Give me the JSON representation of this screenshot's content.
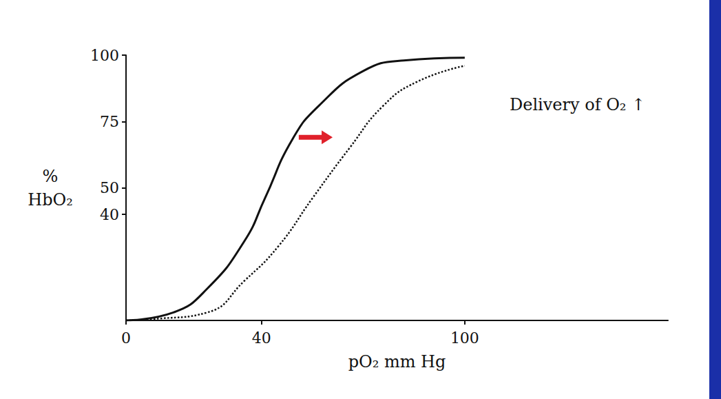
{
  "chart_data": {
    "type": "line",
    "x_label": "pO₂ mm Hg",
    "y_label": "% HbO₂",
    "xlim": [
      0,
      160
    ],
    "xticks": [
      0,
      40,
      100
    ],
    "ylim": [
      0,
      100
    ],
    "yticks": [
      40,
      50,
      75,
      100
    ],
    "grid": false,
    "series": [
      {
        "color": "#111111",
        "line_style": "solid",
        "x": [
          0,
          14,
          24,
          35,
          41,
          49,
          57,
          70,
          82,
          100
        ],
        "values": [
          0,
          3,
          12,
          30,
          46,
          68,
          81,
          94,
          98,
          99
        ]
      },
      {
        "color": "#111111",
        "line_style": "dotted",
        "x": [
          0,
          8,
          24,
          35,
          45,
          55,
          66,
          76,
          86,
          100
        ],
        "values": [
          0,
          0.5,
          3,
          15,
          28,
          46,
          65,
          81,
          90,
          96
        ]
      }
    ],
    "annotations": [
      {
        "text": "Delivery of O₂ ↑"
      }
    ]
  }
}
